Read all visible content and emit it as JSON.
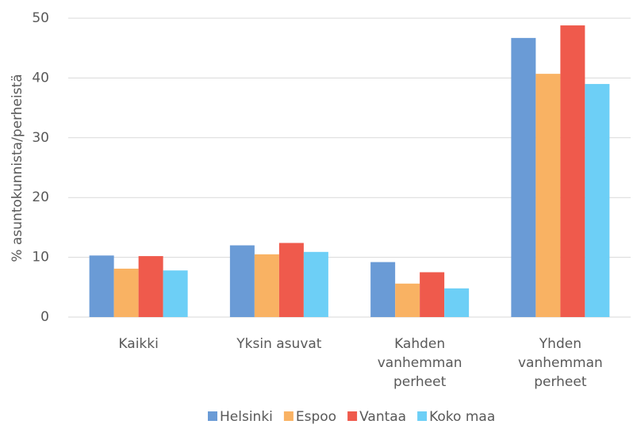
{
  "chart_data": {
    "type": "bar",
    "y_label": "% asuntokunnista/perheistä",
    "categories": [
      "Kaikki",
      "Yksin asuvat",
      "Kahden vanhemman perheet",
      "Yhden vanhemman perheet"
    ],
    "series": [
      {
        "name": "Helsinki",
        "color": "#6a9bd6",
        "values": [
          10.3,
          12.0,
          9.2,
          46.7
        ]
      },
      {
        "name": "Espoo",
        "color": "#f9b263",
        "values": [
          8.1,
          10.5,
          5.6,
          40.7
        ]
      },
      {
        "name": "Vantaa",
        "color": "#ef5a4c",
        "values": [
          10.2,
          12.4,
          7.5,
          48.8
        ]
      },
      {
        "name": "Koko maa",
        "color": "#6dcff6",
        "values": [
          7.8,
          10.9,
          4.8,
          39.0
        ]
      }
    ],
    "ylim": [
      0,
      50
    ],
    "yticks": [
      0,
      10,
      20,
      30,
      40,
      50
    ],
    "grid": true,
    "legend": "bottom"
  }
}
